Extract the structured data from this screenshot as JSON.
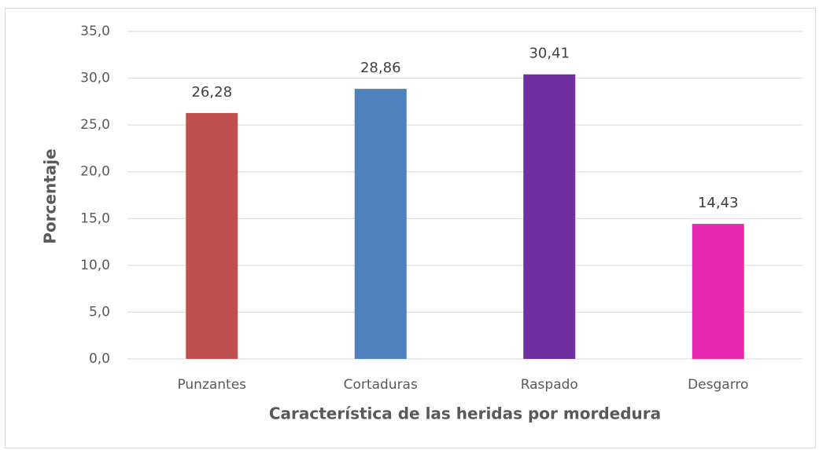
{
  "chart_data": {
    "type": "bar",
    "x_label": "Característica de las heridas por mordedura",
    "y_label": "Porcentaje",
    "categories": [
      "Punzantes",
      "Cortaduras",
      "Raspado",
      "Desgarro"
    ],
    "values": [
      26.28,
      28.86,
      30.41,
      14.43
    ],
    "value_labels": [
      "26,28",
      "28,86",
      "30,41",
      "14,43"
    ],
    "colors": [
      "#c0504d",
      "#4f81bd",
      "#7030a0",
      "#e829b4"
    ],
    "ylim": [
      0,
      35
    ],
    "yticks": [
      {
        "value": 0,
        "label": "0,0"
      },
      {
        "value": 5,
        "label": "5,0"
      },
      {
        "value": 10,
        "label": "10,0"
      },
      {
        "value": 15,
        "label": "15,0"
      },
      {
        "value": 20,
        "label": "20,0"
      },
      {
        "value": 25,
        "label": "25,0"
      },
      {
        "value": 30,
        "label": "30,0"
      },
      {
        "value": 35,
        "label": "35,0"
      }
    ],
    "grid": true
  }
}
